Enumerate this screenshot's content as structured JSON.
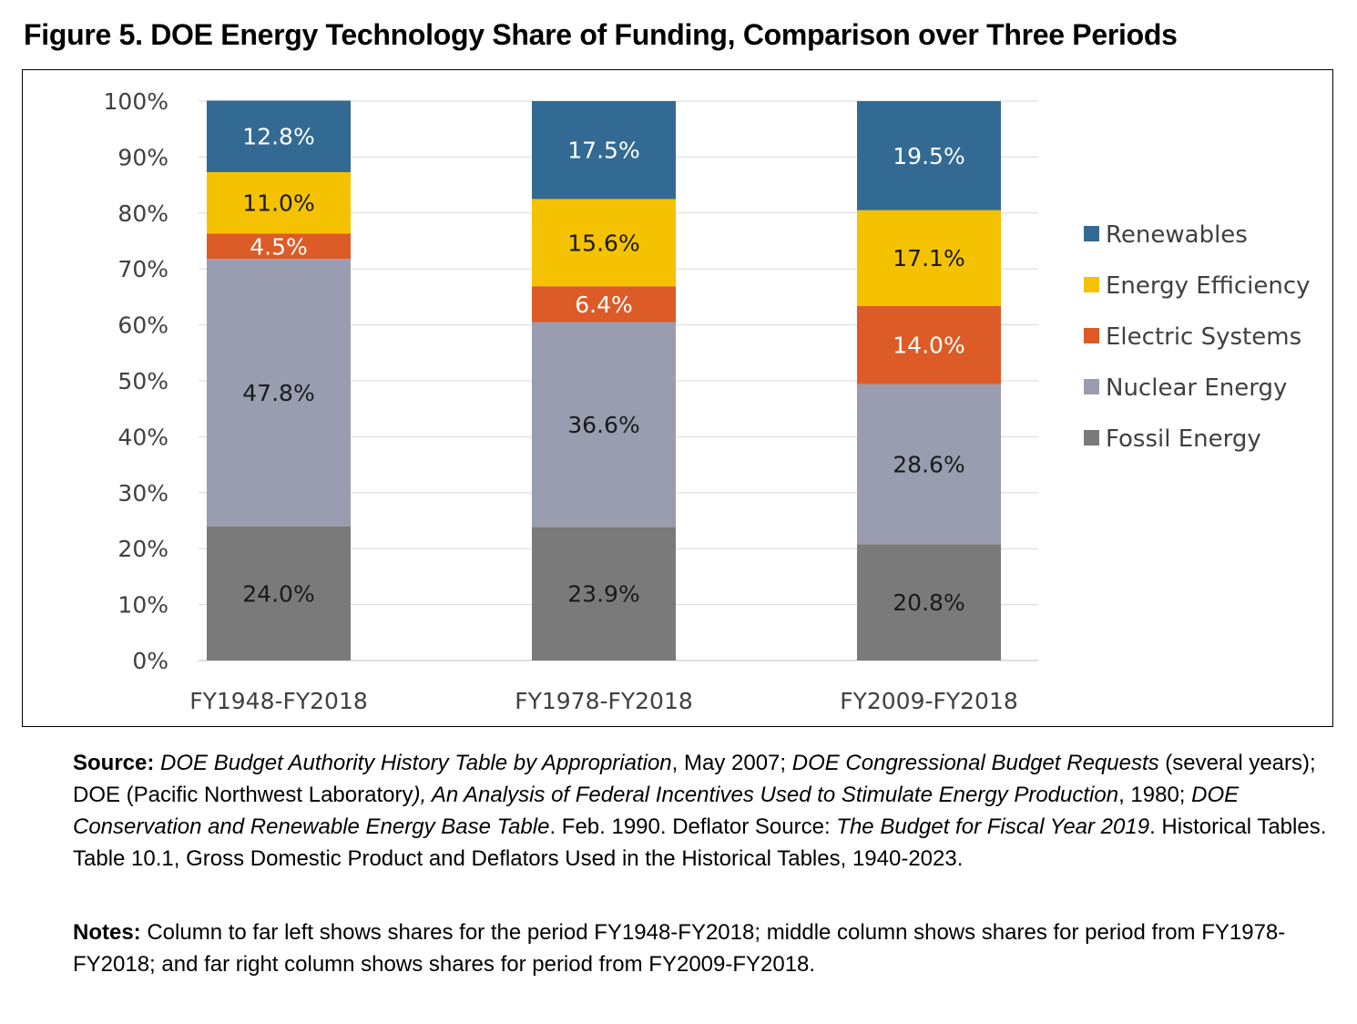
{
  "figure": {
    "title": "Figure 5. DOE Energy Technology Share of Funding, Comparison over Three Periods"
  },
  "chart_data": {
    "type": "bar",
    "stacked": true,
    "categories": [
      "FY1948-FY2018",
      "FY1978-FY2018",
      "FY2009-FY2018"
    ],
    "series": [
      {
        "name": "Fossil Energy",
        "color": "#7a7a7a",
        "values": [
          24.0,
          23.9,
          20.8
        ],
        "labels": [
          "24.0%",
          "23.9%",
          "20.8%"
        ],
        "label_color": "#1a1a1a"
      },
      {
        "name": "Nuclear Energy",
        "color": "#9a9db0",
        "values": [
          47.8,
          36.6,
          28.6
        ],
        "labels": [
          "47.8%",
          "36.6%",
          "28.6%"
        ],
        "label_color": "#1a1a1a"
      },
      {
        "name": "Electric Systems",
        "color": "#dd5b26",
        "values": [
          4.5,
          6.4,
          14.0
        ],
        "labels": [
          "4.5%",
          "6.4%",
          "14.0%"
        ],
        "label_color": "#ffffff"
      },
      {
        "name": "Energy Efficiency",
        "color": "#f4c200",
        "values": [
          11.0,
          15.6,
          17.1
        ],
        "labels": [
          "11.0%",
          "15.6%",
          "17.1%"
        ],
        "label_color": "#1a1a1a"
      },
      {
        "name": "Renewables",
        "color": "#336a93",
        "values": [
          12.8,
          17.5,
          19.5
        ],
        "labels": [
          "12.8%",
          "17.5%",
          "19.5%"
        ],
        "label_color": "#ffffff"
      }
    ],
    "legend_order": [
      "Renewables",
      "Energy Efficiency",
      "Electric Systems",
      "Nuclear Energy",
      "Fossil Energy"
    ],
    "legend_position": "right",
    "y_ticks": [
      "0%",
      "10%",
      "20%",
      "30%",
      "40%",
      "50%",
      "60%",
      "70%",
      "80%",
      "90%",
      "100%"
    ],
    "ylim": [
      0,
      100
    ],
    "grid": true,
    "xlabel": "",
    "ylabel": ""
  },
  "source": {
    "label": "Source:",
    "parts": [
      {
        "text": "DOE Budget Authority History Table by Appropriation",
        "italic": true
      },
      {
        "text": ", May 2007; ",
        "italic": false
      },
      {
        "text": "DOE Congressional Budget Requests",
        "italic": true
      },
      {
        "text": " (several years); DOE (Pacific Northwest Laboratory",
        "italic": false
      },
      {
        "text": "), An Analysis of Federal Incentives Used to Stimulate Energy Production",
        "italic": true
      },
      {
        "text": ", 1980; ",
        "italic": false
      },
      {
        "text": "DOE Conservation and Renewable Energy Base Table",
        "italic": true
      },
      {
        "text": ". Feb. 1990. Deflator Source: ",
        "italic": false
      },
      {
        "text": "The Budget for Fiscal Year 2019",
        "italic": true
      },
      {
        "text": ". Historical Tables. Table 10.1, Gross Domestic Product and Deflators Used in the Historical Tables, 1940-2023.",
        "italic": false
      }
    ]
  },
  "notes": {
    "label": "Notes:",
    "text": "Column to far left shows shares for the period FY1948-FY2018; middle column shows shares for period from FY1978-FY2018; and far right column shows shares for period from FY2009-FY2018."
  }
}
